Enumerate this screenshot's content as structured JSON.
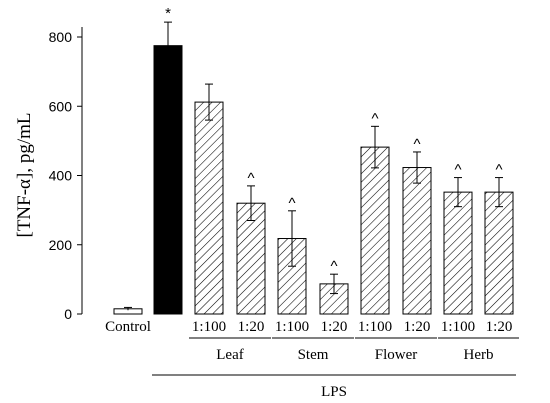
{
  "chart_data": {
    "type": "bar",
    "ylabel": "[TNF-α], pg/mL",
    "xlabel": "",
    "ylim": [
      0,
      800
    ],
    "yticks": [
      0,
      200,
      400,
      600,
      800
    ],
    "categories": [
      "Control",
      "",
      "1:100",
      "1:20",
      "1:100",
      "1:20",
      "1:100",
      "1:20",
      "1:100",
      "1:20"
    ],
    "values": [
      15,
      775,
      612,
      320,
      218,
      87,
      482,
      423,
      352,
      352
    ],
    "errors": [
      4,
      68,
      52,
      50,
      80,
      28,
      60,
      45,
      42,
      42
    ],
    "fills": [
      "white",
      "solid-black",
      "hatched",
      "hatched",
      "hatched",
      "hatched",
      "hatched",
      "hatched",
      "hatched",
      "hatched"
    ],
    "markers": [
      "",
      "*",
      "",
      "^",
      "^",
      "^",
      "^",
      "^",
      "^",
      "^"
    ],
    "groups": [
      {
        "label": "Leaf",
        "bars": [
          2,
          3
        ]
      },
      {
        "label": "Stem",
        "bars": [
          4,
          5
        ]
      },
      {
        "label": "Flower",
        "bars": [
          6,
          7
        ]
      },
      {
        "label": "Herb",
        "bars": [
          8,
          9
        ]
      }
    ],
    "super_group": {
      "label": "LPS",
      "bars": [
        1,
        9
      ]
    },
    "grid": false
  }
}
